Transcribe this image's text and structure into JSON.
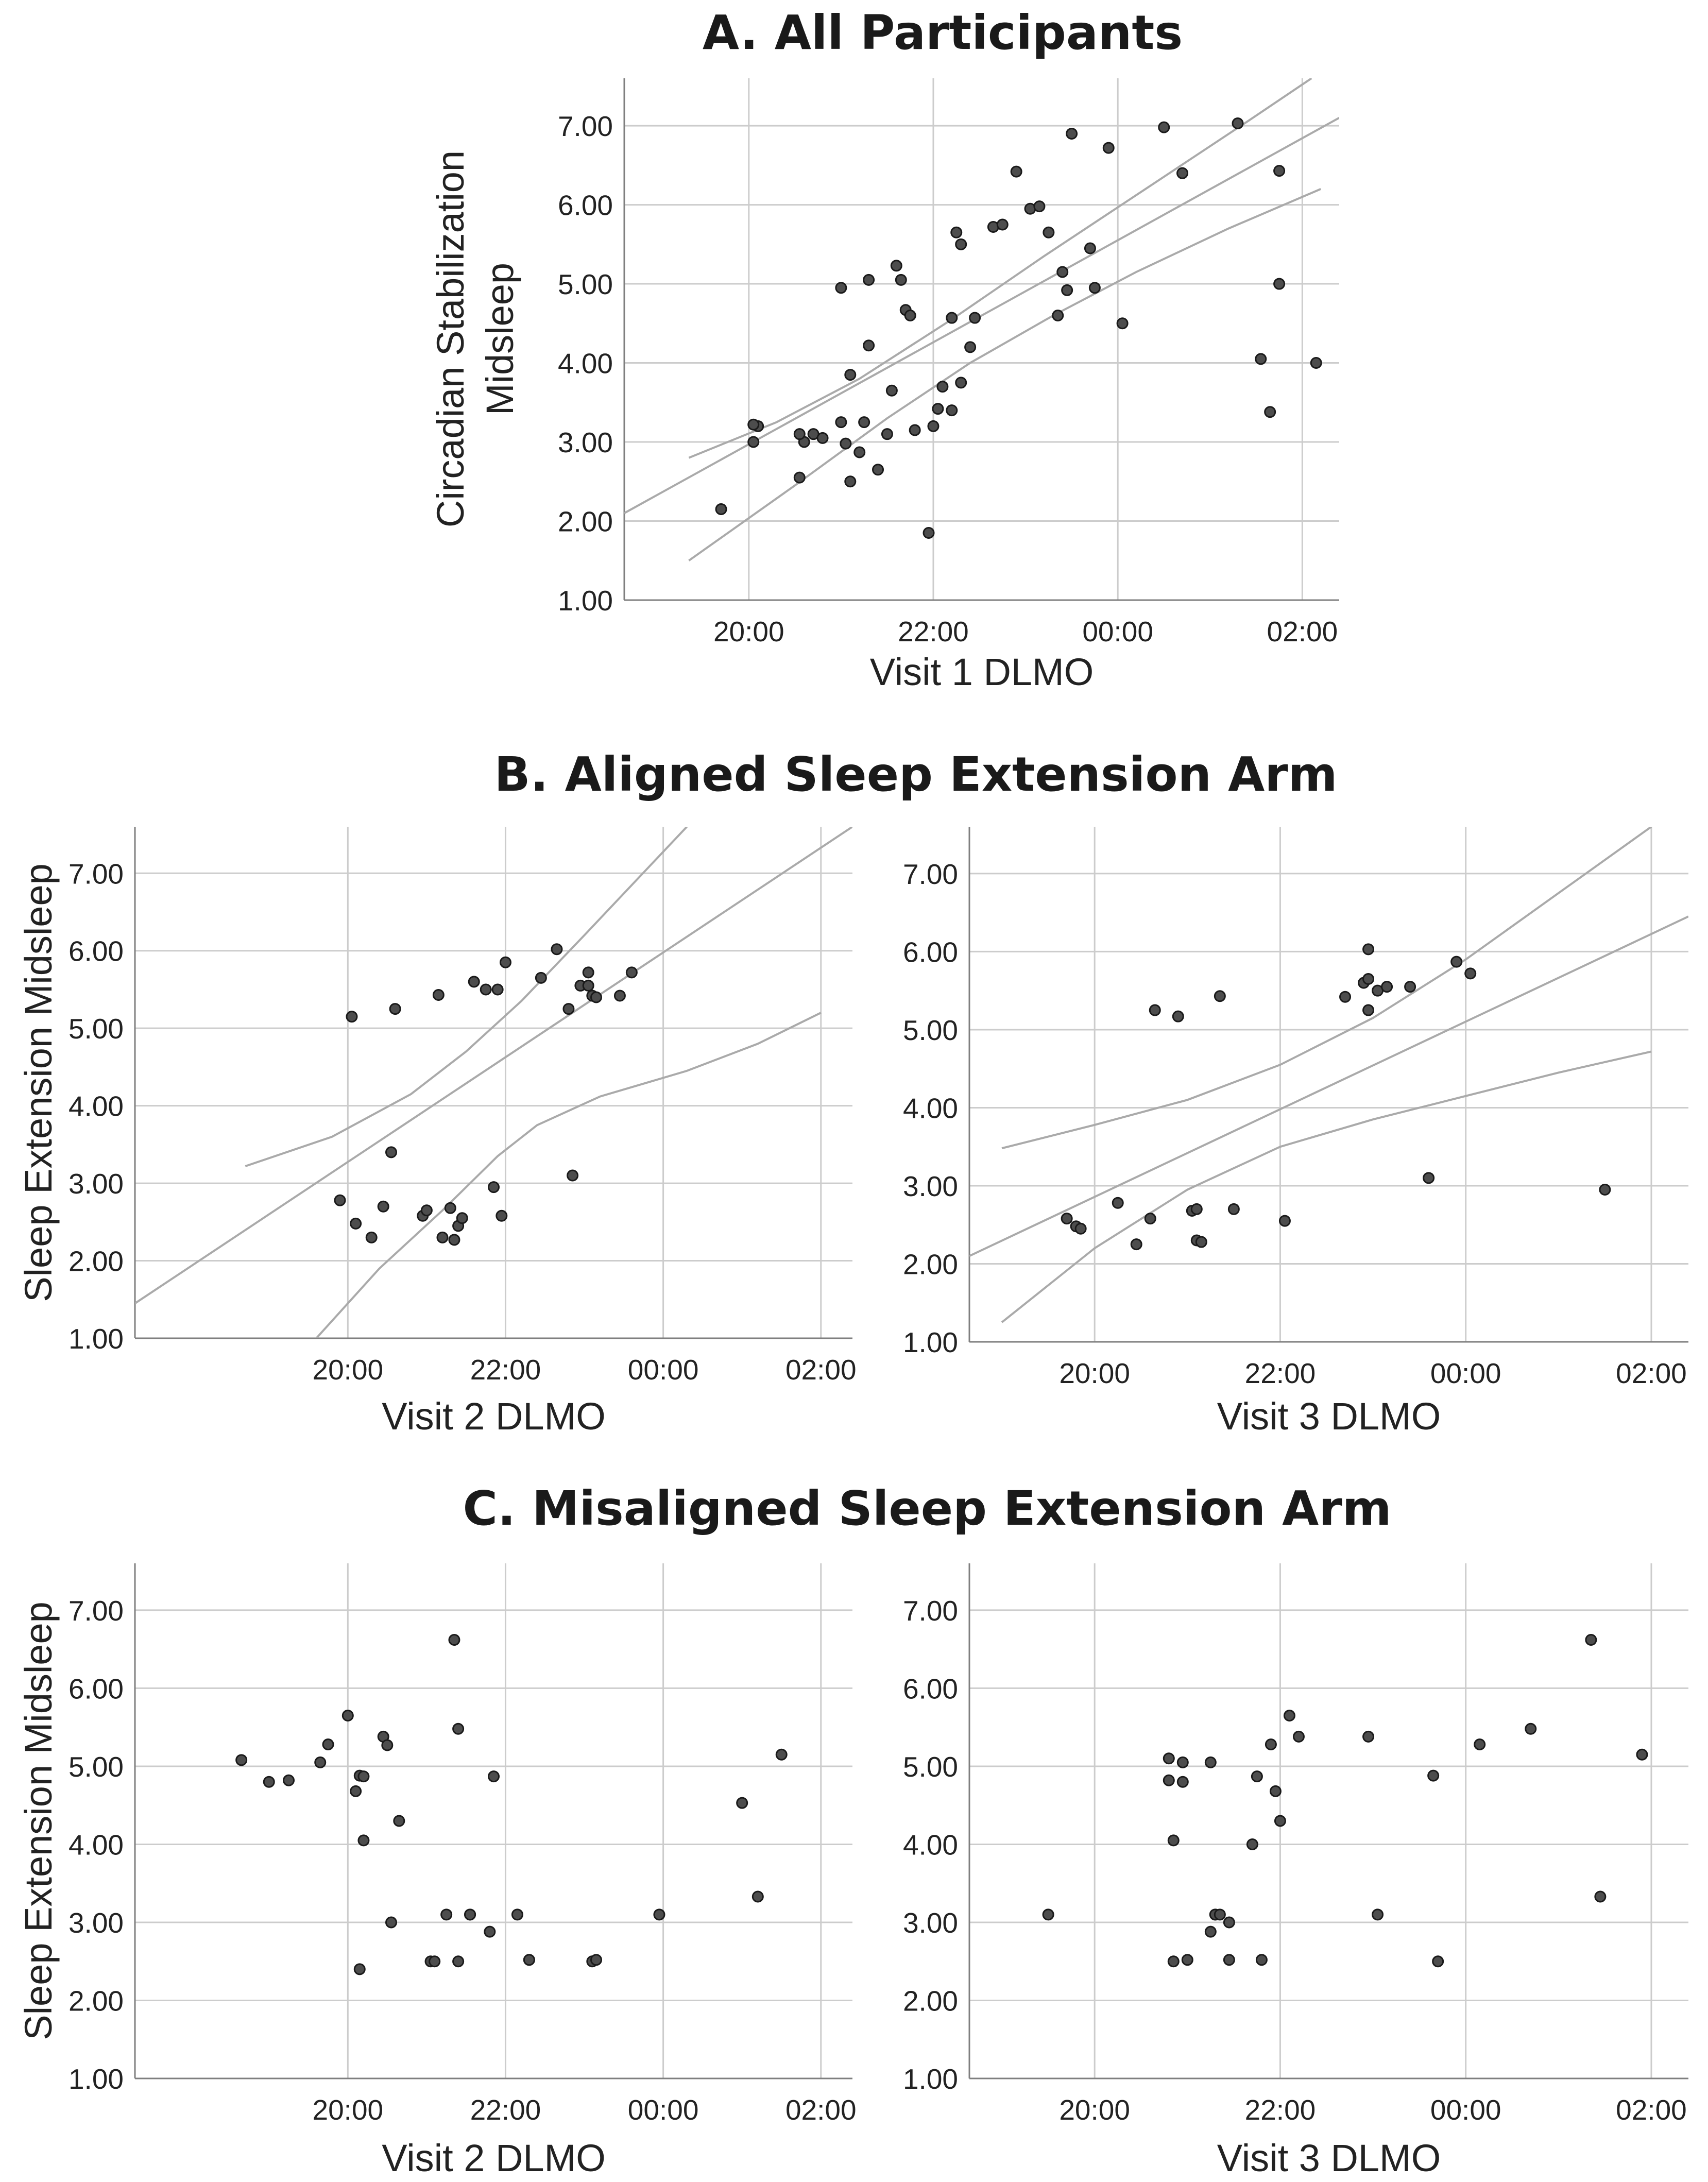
{
  "figure": {
    "section_a_title": "A. All Participants",
    "section_b_title": "B. Aligned Sleep Extension Arm",
    "section_c_title": "C. Misaligned Sleep Extension Arm"
  },
  "colors": {
    "grid": "#cccccc",
    "axis": "#7f7f7f",
    "fit": "#aaaaaa",
    "point_fill": "#4d4d4d",
    "point_stroke": "#1a1a1a"
  },
  "chart_data": [
    {
      "id": "A",
      "type": "scatter",
      "title": "A. All Participants",
      "xlabel": "Visit 1 DLMO",
      "ylabel_lines": [
        "Circadian Stabilization",
        "Midsleep"
      ],
      "x_unit": "hours after 20:00 (24 = 00:00 next day)",
      "xlim": [
        18.65,
        26.4
      ],
      "ylim": [
        1.0,
        7.6
      ],
      "xticks": [
        20,
        22,
        24,
        26
      ],
      "xtick_labels": [
        "20:00",
        "22:00",
        "00:00",
        "02:00"
      ],
      "yticks": [
        1,
        2,
        3,
        4,
        5,
        6,
        7
      ],
      "ytick_labels": [
        "1.00",
        "2.00",
        "3.00",
        "4.00",
        "5.00",
        "6.00",
        "7.00"
      ],
      "fit": {
        "x": [
          18.65,
          26.4
        ],
        "y": [
          2.1,
          7.1
        ]
      },
      "ci_upper": {
        "x": [
          19.35,
          20.3,
          21.2,
          22.2,
          23.2,
          24.3,
          25.4,
          26.1
        ],
        "y": [
          2.8,
          3.25,
          3.8,
          4.55,
          5.35,
          6.2,
          7.05,
          7.6
        ]
      },
      "ci_lower": {
        "x": [
          19.35,
          20.5,
          21.5,
          22.4,
          23.3,
          24.2,
          25.2,
          26.2
        ],
        "y": [
          1.5,
          2.45,
          3.3,
          4.0,
          4.6,
          5.15,
          5.7,
          6.2
        ]
      },
      "points": {
        "x": [
          19.7,
          20.05,
          20.1,
          20.05,
          20.55,
          20.6,
          20.55,
          20.7,
          20.8,
          21.0,
          21.05,
          21.1,
          21.2,
          21.25,
          21.3,
          21.4,
          21.5,
          21.55,
          21.6,
          21.65,
          21.7,
          21.75,
          21.1,
          21.3,
          21.0,
          21.8,
          21.95,
          22.0,
          22.05,
          22.1,
          22.2,
          22.25,
          22.3,
          22.2,
          22.3,
          22.4,
          22.45,
          22.65,
          22.75,
          22.9,
          23.05,
          23.15,
          23.25,
          23.35,
          23.45,
          23.5,
          23.4,
          23.7,
          24.05,
          23.75,
          23.9,
          24.5,
          24.7,
          25.3,
          25.55,
          25.65,
          25.75,
          25.75,
          26.15
        ],
        "y": [
          2.15,
          3.0,
          3.2,
          3.22,
          2.55,
          3.0,
          3.1,
          3.1,
          3.05,
          3.25,
          2.98,
          2.5,
          2.87,
          3.25,
          4.22,
          2.65,
          3.1,
          3.65,
          5.23,
          5.05,
          4.67,
          4.6,
          3.85,
          5.05,
          4.95,
          3.15,
          1.85,
          3.2,
          3.42,
          3.7,
          4.57,
          5.65,
          5.5,
          3.4,
          3.75,
          4.2,
          4.57,
          5.72,
          5.75,
          6.42,
          5.95,
          5.98,
          5.65,
          4.6,
          4.92,
          6.9,
          5.15,
          5.45,
          4.5,
          4.95,
          6.72,
          6.98,
          6.4,
          7.03,
          4.05,
          3.38,
          6.43,
          5.0,
          4.0
        ]
      }
    },
    {
      "id": "B-left",
      "type": "scatter",
      "xlabel": "Visit 2 DLMO",
      "ylabel": "Sleep Extension Midsleep",
      "x_unit": "hours after 20:00 (24 = 00:00 next day)",
      "xlim": [
        17.3,
        26.4
      ],
      "ylim": [
        1.0,
        7.6
      ],
      "xticks": [
        20,
        22,
        24,
        26
      ],
      "xtick_labels": [
        "20:00",
        "22:00",
        "00:00",
        "02:00"
      ],
      "yticks": [
        1,
        2,
        3,
        4,
        5,
        6,
        7
      ],
      "ytick_labels": [
        "1.00",
        "2.00",
        "3.00",
        "4.00",
        "5.00",
        "6.00",
        "7.00"
      ],
      "fit": {
        "x": [
          17.3,
          26.4
        ],
        "y": [
          1.45,
          7.6
        ]
      },
      "ci_upper": {
        "x": [
          18.7,
          19.8,
          20.8,
          21.5,
          22.2,
          23.0,
          24.3
        ],
        "y": [
          3.22,
          3.6,
          4.15,
          4.7,
          5.35,
          6.2,
          7.6
        ]
      },
      "ci_lower": {
        "x": [
          19.6,
          20.4,
          21.2,
          21.9,
          22.4,
          23.2,
          24.3,
          25.2,
          26.0
        ],
        "y": [
          1.0,
          1.9,
          2.65,
          3.35,
          3.75,
          4.12,
          4.45,
          4.8,
          5.2
        ]
      },
      "points": {
        "x": [
          19.9,
          20.1,
          20.05,
          20.3,
          20.45,
          20.55,
          20.6,
          20.95,
          21.0,
          21.15,
          21.2,
          21.3,
          21.35,
          21.4,
          21.45,
          21.6,
          21.75,
          21.85,
          21.95,
          22.0,
          21.9,
          22.45,
          22.65,
          22.8,
          22.85,
          22.95,
          23.05,
          23.1,
          23.05,
          23.15,
          23.45,
          23.6
        ],
        "y": [
          2.78,
          2.48,
          5.15,
          2.3,
          2.7,
          3.4,
          5.25,
          2.58,
          2.65,
          5.43,
          2.3,
          2.68,
          2.27,
          2.45,
          2.55,
          5.6,
          5.5,
          2.95,
          2.58,
          5.85,
          5.5,
          5.65,
          6.02,
          5.25,
          3.1,
          5.55,
          5.72,
          5.42,
          5.55,
          5.4,
          5.42,
          5.72
        ]
      }
    },
    {
      "id": "B-right",
      "type": "scatter",
      "xlabel": "Visit 3 DLMO",
      "x_unit": "hours after 20:00 (24 = 00:00 next day)",
      "xlim": [
        18.65,
        26.4
      ],
      "ylim": [
        1.0,
        7.6
      ],
      "xticks": [
        20,
        22,
        24,
        26
      ],
      "xtick_labels": [
        "20:00",
        "22:00",
        "00:00",
        "02:00"
      ],
      "yticks": [
        1,
        2,
        3,
        4,
        5,
        6,
        7
      ],
      "ytick_labels": [
        "1.00",
        "2.00",
        "3.00",
        "4.00",
        "5.00",
        "6.00",
        "7.00"
      ],
      "fit": {
        "x": [
          18.65,
          26.4
        ],
        "y": [
          2.1,
          6.45
        ]
      },
      "ci_upper": {
        "x": [
          19.0,
          20.0,
          21.0,
          22.0,
          23.0,
          24.0,
          25.0,
          26.0
        ],
        "y": [
          3.48,
          3.78,
          4.1,
          4.55,
          5.15,
          5.9,
          6.75,
          7.6
        ]
      },
      "ci_lower": {
        "x": [
          19.0,
          20.0,
          21.0,
          22.0,
          23.0,
          24.0,
          25.0,
          26.0
        ],
        "y": [
          1.25,
          2.2,
          2.95,
          3.5,
          3.85,
          4.15,
          4.45,
          4.72
        ]
      },
      "points": {
        "x": [
          19.7,
          19.8,
          19.85,
          20.25,
          20.45,
          20.6,
          20.65,
          20.9,
          21.05,
          21.1,
          21.1,
          21.15,
          21.35,
          21.5,
          22.05,
          22.7,
          22.9,
          22.95,
          22.95,
          22.95,
          23.05,
          23.15,
          23.6,
          23.4,
          23.9,
          24.05,
          25.5
        ],
        "y": [
          2.58,
          2.48,
          2.45,
          2.78,
          2.25,
          2.58,
          5.25,
          5.17,
          2.68,
          2.3,
          2.7,
          2.28,
          5.43,
          2.7,
          2.55,
          5.42,
          5.6,
          5.25,
          6.03,
          5.65,
          5.5,
          5.55,
          3.1,
          5.55,
          5.87,
          5.72,
          2.95
        ]
      }
    },
    {
      "id": "C-left",
      "type": "scatter",
      "xlabel": "Visit 2 DLMO",
      "ylabel": "Sleep Extension Midsleep",
      "x_unit": "hours after 20:00 (24 = 00:00 next day)",
      "xlim": [
        17.3,
        26.4
      ],
      "ylim": [
        1.0,
        7.6
      ],
      "xticks": [
        20,
        22,
        24,
        26
      ],
      "xtick_labels": [
        "20:00",
        "22:00",
        "00:00",
        "02:00"
      ],
      "yticks": [
        1,
        2,
        3,
        4,
        5,
        6,
        7
      ],
      "ytick_labels": [
        "1.00",
        "2.00",
        "3.00",
        "4.00",
        "5.00",
        "6.00",
        "7.00"
      ],
      "points": {
        "x": [
          18.65,
          19.0,
          19.25,
          19.65,
          19.75,
          20.0,
          20.1,
          20.15,
          20.15,
          20.2,
          20.2,
          20.45,
          20.5,
          20.55,
          20.65,
          21.05,
          21.1,
          21.25,
          21.35,
          21.4,
          21.4,
          21.55,
          21.55,
          21.8,
          21.85,
          22.15,
          22.3,
          22.3,
          23.1,
          23.15,
          23.95,
          25.0,
          25.2,
          25.5
        ],
        "y": [
          5.08,
          4.8,
          4.82,
          5.05,
          5.28,
          5.65,
          4.68,
          4.88,
          2.4,
          4.05,
          4.87,
          5.38,
          5.27,
          3.0,
          4.3,
          2.5,
          2.5,
          3.1,
          6.62,
          2.5,
          5.48,
          3.1,
          3.1,
          2.88,
          4.87,
          3.1,
          2.52,
          2.52,
          2.5,
          2.52,
          3.1,
          4.53,
          3.33,
          5.15
        ]
      }
    },
    {
      "id": "C-right",
      "type": "scatter",
      "xlabel": "Visit 3 DLMO",
      "x_unit": "hours after 20:00 (24 = 00:00 next day)",
      "xlim": [
        18.65,
        26.4
      ],
      "ylim": [
        1.0,
        7.6
      ],
      "xticks": [
        20,
        22,
        24,
        26
      ],
      "xtick_labels": [
        "20:00",
        "22:00",
        "00:00",
        "02:00"
      ],
      "yticks": [
        1,
        2,
        3,
        4,
        5,
        6,
        7
      ],
      "ytick_labels": [
        "1.00",
        "2.00",
        "3.00",
        "4.00",
        "5.00",
        "6.00",
        "7.00"
      ],
      "points": {
        "x": [
          19.5,
          20.8,
          20.8,
          20.85,
          20.85,
          20.95,
          20.95,
          21.0,
          21.25,
          21.25,
          21.3,
          21.3,
          21.35,
          21.45,
          21.45,
          21.7,
          21.75,
          21.8,
          21.9,
          21.95,
          22.0,
          22.1,
          22.2,
          22.95,
          23.05,
          23.65,
          23.7,
          24.15,
          24.7,
          25.35,
          25.45,
          25.9
        ],
        "y": [
          3.1,
          5.1,
          4.82,
          4.05,
          2.5,
          5.05,
          4.8,
          2.52,
          5.05,
          2.88,
          3.1,
          3.1,
          3.1,
          3.0,
          2.52,
          4.0,
          4.87,
          2.52,
          5.28,
          4.68,
          4.3,
          5.65,
          5.38,
          5.38,
          3.1,
          4.88,
          2.5,
          5.28,
          5.48,
          6.62,
          3.33,
          5.15
        ]
      }
    }
  ]
}
